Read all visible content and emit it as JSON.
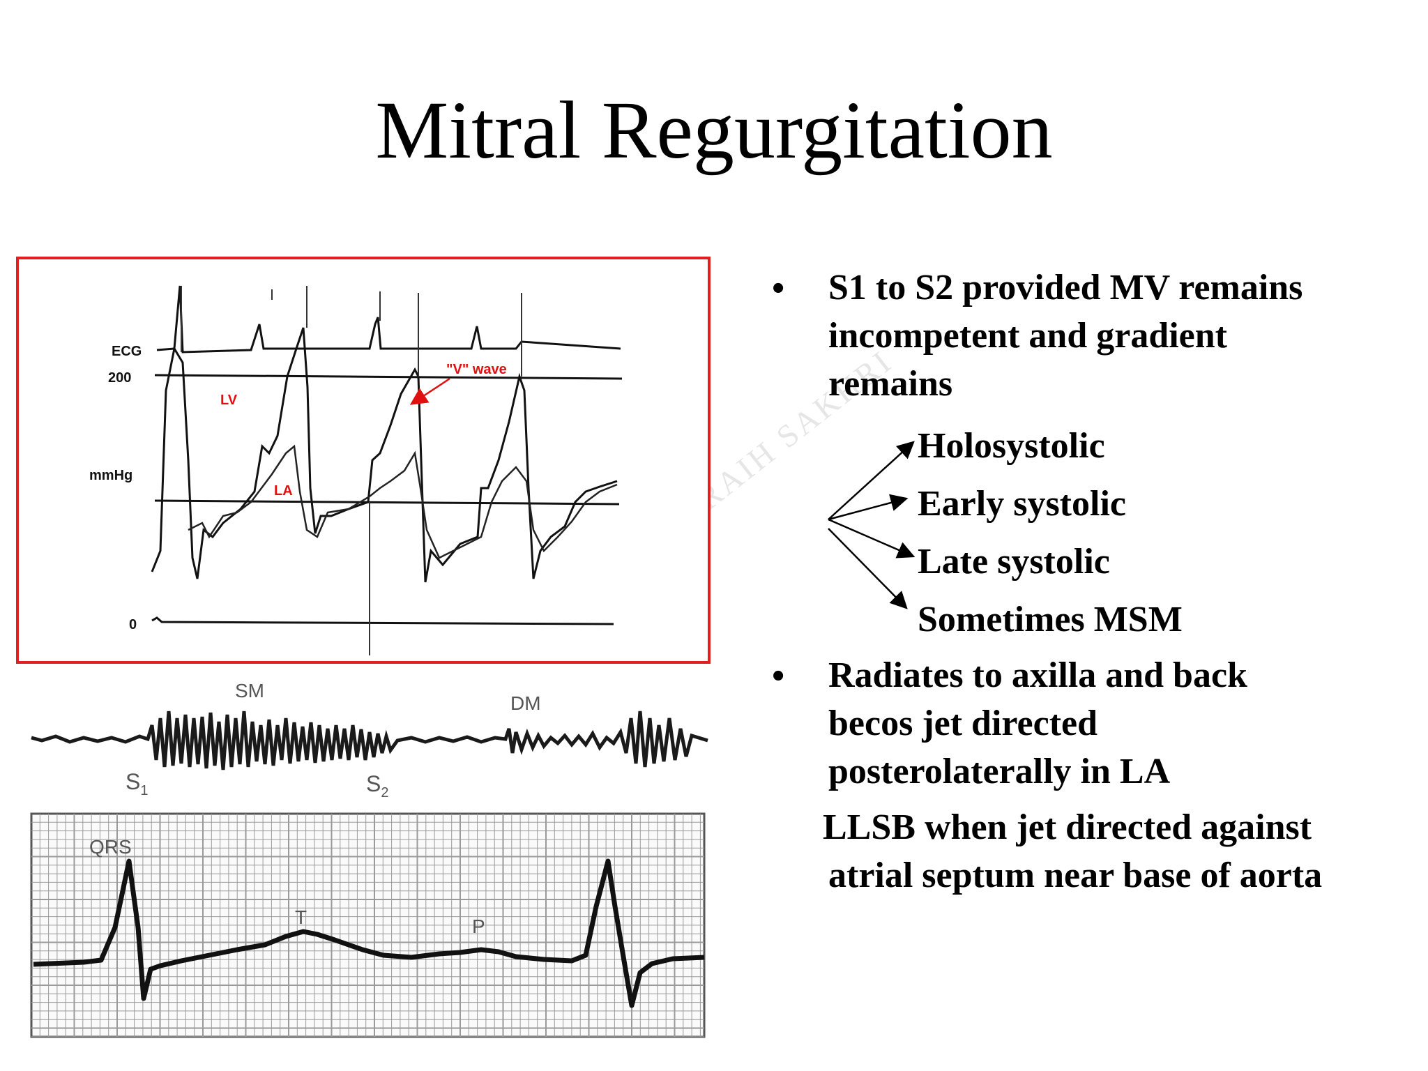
{
  "title": "Mitral Regurgitation",
  "watermark": "RAIH SAKHRI",
  "figure": {
    "labels": {
      "ecg": "ECG",
      "p200": "200",
      "mmhg": "mmHg",
      "zero": "0",
      "lv": "LV",
      "la": "LA",
      "vwave": "\"V\" wave"
    },
    "pcg_labels": {
      "sm": "SM",
      "dm": "DM",
      "s1": "S",
      "s1_sub": "1",
      "s2": "S",
      "s2_sub": "2"
    },
    "ecg_labels": {
      "qrs": "QRS",
      "t": "T",
      "p": "P"
    }
  },
  "bullets": {
    "b1_lines": [
      "S1 to S2 provided MV remains",
      "incompetent and gradient",
      "remains"
    ],
    "sub_items": [
      "Holosystolic",
      "Early systolic",
      "Late systolic",
      "Sometimes MSM"
    ],
    "b2_lines": [
      "Radiates to axilla and back",
      "becos jet directed",
      "posterolaterally in LA"
    ],
    "extra_lines": [
      "LLSB when jet directed against",
      "atrial septum near base of aorta"
    ]
  },
  "colors": {
    "frame": "#e02020",
    "annotation": "#e01010",
    "grid": "#9a9a9a"
  }
}
